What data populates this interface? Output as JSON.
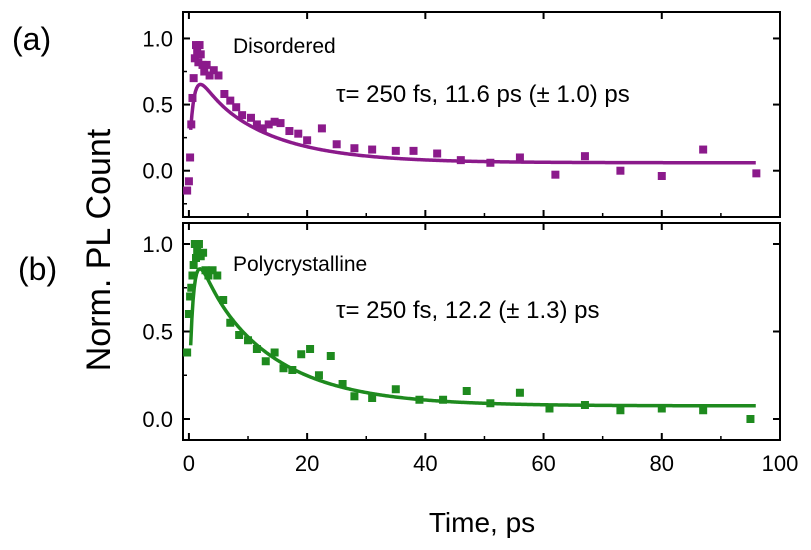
{
  "chart_data": [
    {
      "panel_label": "(a)",
      "type": "scatter",
      "sample": "Disordered",
      "annotation": "τ= 250 fs, 11.6 ps (± 1.0) ps",
      "color": "#8b1a8b",
      "xlim": [
        -1,
        100
      ],
      "ylim": [
        -0.35,
        1.2
      ],
      "yticks": [
        0.0,
        0.5,
        1.0
      ],
      "ytick_labels": [
        "0.0",
        "0.5",
        "1.0"
      ],
      "grid": false,
      "fit": {
        "tau1_fs": 250,
        "tau2_ps": 11.6,
        "y0": 0.06,
        "a": 0.68,
        "rise_ps": 1.5,
        "t0_ps": 0.0
      },
      "points": [
        [
          -0.3,
          -0.15
        ],
        [
          0.0,
          -0.08
        ],
        [
          0.2,
          0.1
        ],
        [
          0.4,
          0.35
        ],
        [
          0.6,
          0.55
        ],
        [
          0.8,
          0.7
        ],
        [
          1.0,
          0.85
        ],
        [
          1.2,
          0.95
        ],
        [
          1.4,
          0.9
        ],
        [
          1.6,
          0.82
        ],
        [
          1.8,
          0.95
        ],
        [
          2.0,
          0.88
        ],
        [
          2.3,
          0.8
        ],
        [
          2.6,
          0.75
        ],
        [
          3.0,
          0.8
        ],
        [
          3.5,
          0.72
        ],
        [
          4.2,
          0.76
        ],
        [
          5.0,
          0.72
        ],
        [
          6.0,
          0.58
        ],
        [
          7.0,
          0.53
        ],
        [
          8.0,
          0.48
        ],
        [
          9.0,
          0.42
        ],
        [
          10.5,
          0.4
        ],
        [
          11.5,
          0.35
        ],
        [
          12.5,
          0.32
        ],
        [
          13.5,
          0.35
        ],
        [
          14.5,
          0.37
        ],
        [
          15.5,
          0.36
        ],
        [
          17.0,
          0.3
        ],
        [
          18.5,
          0.28
        ],
        [
          20.0,
          0.23
        ],
        [
          22.5,
          0.32
        ],
        [
          25.0,
          0.2
        ],
        [
          28.0,
          0.17
        ],
        [
          31.0,
          0.16
        ],
        [
          35.0,
          0.15
        ],
        [
          38.0,
          0.15
        ],
        [
          42.0,
          0.13
        ],
        [
          46.0,
          0.08
        ],
        [
          51.0,
          0.06
        ],
        [
          56.0,
          0.1
        ],
        [
          62.0,
          -0.03
        ],
        [
          67.0,
          0.11
        ],
        [
          73.0,
          0.0
        ],
        [
          80.0,
          -0.04
        ],
        [
          87.0,
          0.16
        ],
        [
          96.0,
          -0.02
        ]
      ]
    },
    {
      "panel_label": "(b)",
      "type": "scatter",
      "sample": "Polycrystalline",
      "annotation": "τ= 250 fs, 12.2 (± 1.3) ps",
      "color": "#1e8a1e",
      "xlim": [
        -1,
        100
      ],
      "ylim": [
        -0.12,
        1.12
      ],
      "yticks": [
        0.0,
        0.5,
        1.0
      ],
      "ytick_labels": [
        "0.0",
        "0.5",
        "1.0"
      ],
      "xticks": [
        0,
        20,
        40,
        60,
        80,
        100
      ],
      "xtick_labels": [
        "0",
        "20",
        "40",
        "60",
        "80",
        "100"
      ],
      "xlabel": "Time, ps",
      "grid": false,
      "fit": {
        "tau1_fs": 250,
        "tau2_ps": 12.2,
        "y0": 0.075,
        "a": 0.89,
        "rise_ps": 1.3,
        "t0_ps": 0.0
      },
      "points": [
        [
          -0.3,
          0.38
        ],
        [
          0.0,
          0.6
        ],
        [
          0.2,
          0.7
        ],
        [
          0.4,
          0.75
        ],
        [
          0.6,
          0.82
        ],
        [
          0.8,
          0.88
        ],
        [
          1.0,
          1.0
        ],
        [
          1.2,
          0.92
        ],
        [
          1.4,
          0.96
        ],
        [
          1.7,
          1.0
        ],
        [
          2.0,
          0.93
        ],
        [
          2.4,
          0.95
        ],
        [
          2.8,
          0.85
        ],
        [
          3.3,
          0.82
        ],
        [
          4.0,
          0.85
        ],
        [
          4.8,
          0.82
        ],
        [
          5.8,
          0.68
        ],
        [
          7.0,
          0.55
        ],
        [
          8.5,
          0.48
        ],
        [
          10.0,
          0.45
        ],
        [
          11.5,
          0.4
        ],
        [
          13.0,
          0.33
        ],
        [
          14.5,
          0.38
        ],
        [
          16.0,
          0.29
        ],
        [
          17.5,
          0.28
        ],
        [
          19.0,
          0.37
        ],
        [
          20.5,
          0.4
        ],
        [
          22.0,
          0.25
        ],
        [
          24.0,
          0.36
        ],
        [
          26.0,
          0.2
        ],
        [
          28.0,
          0.13
        ],
        [
          31.0,
          0.12
        ],
        [
          35.0,
          0.17
        ],
        [
          39.0,
          0.11
        ],
        [
          43.0,
          0.11
        ],
        [
          47.0,
          0.16
        ],
        [
          51.0,
          0.09
        ],
        [
          56.0,
          0.15
        ],
        [
          61.0,
          0.06
        ],
        [
          67.0,
          0.08
        ],
        [
          73.0,
          0.05
        ],
        [
          80.0,
          0.06
        ],
        [
          87.0,
          0.05
        ],
        [
          95.0,
          0.0
        ]
      ]
    }
  ],
  "shared_ylabel": "Norm. PL Count"
}
